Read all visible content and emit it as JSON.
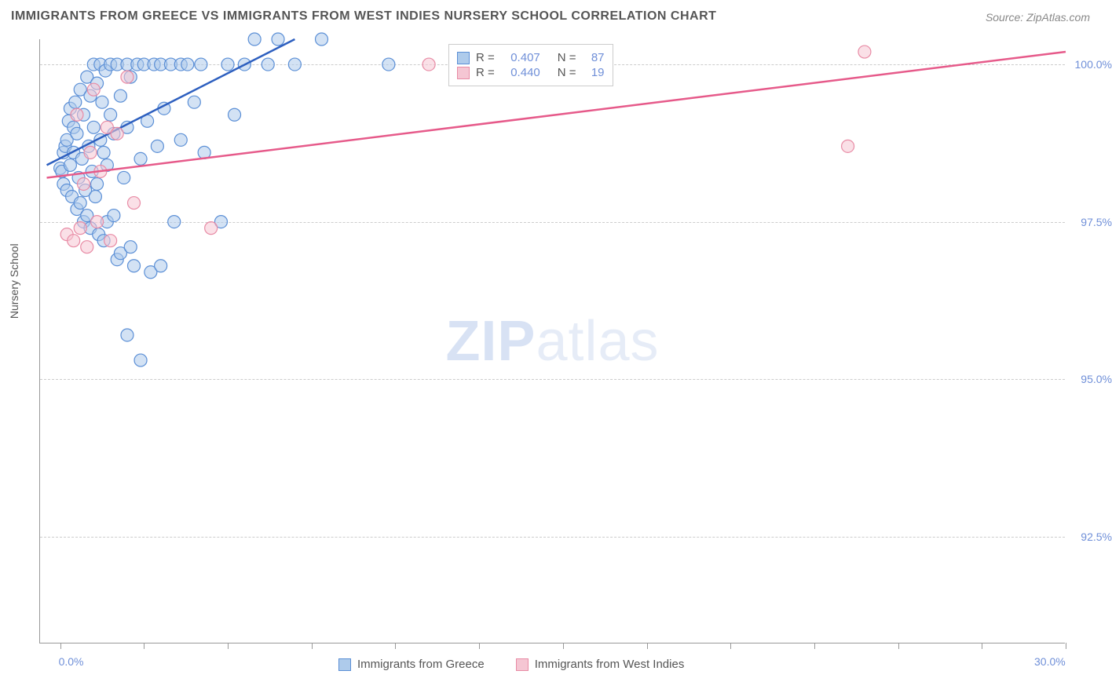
{
  "title": "IMMIGRANTS FROM GREECE VS IMMIGRANTS FROM WEST INDIES NURSERY SCHOOL CORRELATION CHART",
  "source": "Source: ZipAtlas.com",
  "watermark": {
    "zip": "ZIP",
    "atlas": "atlas"
  },
  "y_axis": {
    "title": "Nursery School",
    "min": 90.8,
    "max": 100.4,
    "ticks": [
      {
        "value": 92.5,
        "label": "92.5%"
      },
      {
        "value": 95.0,
        "label": "95.0%"
      },
      {
        "value": 97.5,
        "label": "97.5%"
      },
      {
        "value": 100.0,
        "label": "100.0%"
      }
    ]
  },
  "x_axis": {
    "min": -0.6,
    "max": 30.0,
    "ticks": [
      0,
      2.5,
      5,
      7.5,
      10,
      12.5,
      15,
      17.5,
      20,
      22.5,
      25,
      27.5,
      30
    ],
    "labels": [
      {
        "value": 0.0,
        "label": "0.0%"
      },
      {
        "value": 30.0,
        "label": "30.0%"
      }
    ]
  },
  "series": [
    {
      "name": "Immigrants from Greece",
      "fill": "#aecbeb",
      "stroke": "#5b8fd6",
      "line_color": "#2d5fbf",
      "R": "0.407",
      "N": "87",
      "trend": {
        "x1": -0.4,
        "y1": 98.4,
        "x2": 7.0,
        "y2": 100.4
      },
      "marker_radius": 8,
      "points": [
        [
          0.0,
          98.35
        ],
        [
          0.05,
          98.3
        ],
        [
          0.1,
          98.6
        ],
        [
          0.1,
          98.1
        ],
        [
          0.15,
          98.7
        ],
        [
          0.2,
          98.8
        ],
        [
          0.2,
          98.0
        ],
        [
          0.25,
          99.1
        ],
        [
          0.3,
          98.4
        ],
        [
          0.3,
          99.3
        ],
        [
          0.35,
          97.9
        ],
        [
          0.4,
          99.0
        ],
        [
          0.4,
          98.6
        ],
        [
          0.45,
          99.4
        ],
        [
          0.5,
          97.7
        ],
        [
          0.5,
          98.9
        ],
        [
          0.55,
          98.2
        ],
        [
          0.6,
          99.6
        ],
        [
          0.6,
          97.8
        ],
        [
          0.65,
          98.5
        ],
        [
          0.7,
          97.5
        ],
        [
          0.7,
          99.2
        ],
        [
          0.75,
          98.0
        ],
        [
          0.8,
          99.8
        ],
        [
          0.8,
          97.6
        ],
        [
          0.85,
          98.7
        ],
        [
          0.9,
          99.5
        ],
        [
          0.9,
          97.4
        ],
        [
          0.95,
          98.3
        ],
        [
          1.0,
          99.0
        ],
        [
          1.0,
          100.0
        ],
        [
          1.05,
          97.9
        ],
        [
          1.1,
          99.7
        ],
        [
          1.1,
          98.1
        ],
        [
          1.15,
          97.3
        ],
        [
          1.2,
          100.0
        ],
        [
          1.2,
          98.8
        ],
        [
          1.25,
          99.4
        ],
        [
          1.3,
          97.2
        ],
        [
          1.3,
          98.6
        ],
        [
          1.35,
          99.9
        ],
        [
          1.4,
          97.5
        ],
        [
          1.4,
          98.4
        ],
        [
          1.5,
          100.0
        ],
        [
          1.5,
          99.2
        ],
        [
          1.6,
          97.6
        ],
        [
          1.6,
          98.9
        ],
        [
          1.7,
          100.0
        ],
        [
          1.7,
          96.9
        ],
        [
          1.8,
          99.5
        ],
        [
          1.8,
          97.0
        ],
        [
          1.9,
          98.2
        ],
        [
          2.0,
          100.0
        ],
        [
          2.0,
          99.0
        ],
        [
          2.0,
          95.7
        ],
        [
          2.1,
          97.1
        ],
        [
          2.1,
          99.8
        ],
        [
          2.2,
          96.8
        ],
        [
          2.3,
          100.0
        ],
        [
          2.4,
          98.5
        ],
        [
          2.4,
          95.3
        ],
        [
          2.5,
          100.0
        ],
        [
          2.6,
          99.1
        ],
        [
          2.7,
          96.7
        ],
        [
          2.8,
          100.0
        ],
        [
          2.9,
          98.7
        ],
        [
          3.0,
          100.0
        ],
        [
          3.0,
          96.8
        ],
        [
          3.1,
          99.3
        ],
        [
          3.3,
          100.0
        ],
        [
          3.4,
          97.5
        ],
        [
          3.6,
          100.0
        ],
        [
          3.6,
          98.8
        ],
        [
          3.8,
          100.0
        ],
        [
          4.0,
          99.4
        ],
        [
          4.2,
          100.0
        ],
        [
          4.3,
          98.6
        ],
        [
          4.8,
          97.5
        ],
        [
          5.0,
          100.0
        ],
        [
          5.2,
          99.2
        ],
        [
          5.5,
          100.0
        ],
        [
          5.8,
          100.4
        ],
        [
          6.2,
          100.0
        ],
        [
          6.5,
          100.4
        ],
        [
          7.0,
          100.0
        ],
        [
          7.8,
          100.4
        ],
        [
          9.8,
          100.0
        ]
      ]
    },
    {
      "name": "Immigrants from West Indies",
      "fill": "#f5c6d3",
      "stroke": "#e88ba5",
      "line_color": "#e65a8a",
      "R": "0.440",
      "N": "19",
      "trend": {
        "x1": -0.4,
        "y1": 98.2,
        "x2": 30.0,
        "y2": 100.2
      },
      "marker_radius": 8,
      "points": [
        [
          0.2,
          97.3
        ],
        [
          0.4,
          97.2
        ],
        [
          0.5,
          99.2
        ],
        [
          0.6,
          97.4
        ],
        [
          0.7,
          98.1
        ],
        [
          0.8,
          97.1
        ],
        [
          0.9,
          98.6
        ],
        [
          1.0,
          99.6
        ],
        [
          1.1,
          97.5
        ],
        [
          1.2,
          98.3
        ],
        [
          1.4,
          99.0
        ],
        [
          1.5,
          97.2
        ],
        [
          1.7,
          98.9
        ],
        [
          2.0,
          99.8
        ],
        [
          2.2,
          97.8
        ],
        [
          4.5,
          97.4
        ],
        [
          11.0,
          100.0
        ],
        [
          23.5,
          98.7
        ],
        [
          24.0,
          100.2
        ]
      ]
    }
  ],
  "bottom_legend": [
    {
      "label": "Immigrants from Greece",
      "fill": "#aecbeb",
      "stroke": "#5b8fd6"
    },
    {
      "label": "Immigrants from West Indies",
      "fill": "#f5c6d3",
      "stroke": "#e88ba5"
    }
  ],
  "background_color": "#ffffff",
  "grid_color": "#cccccc"
}
